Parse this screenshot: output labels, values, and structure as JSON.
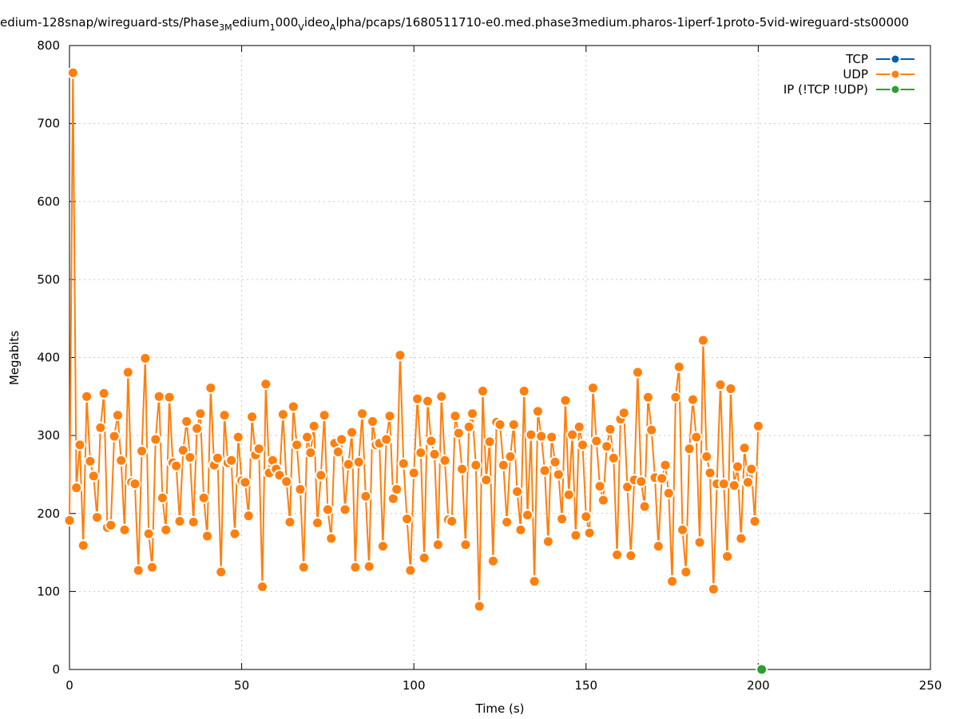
{
  "chart_data": {
    "type": "line",
    "title_segments": [
      "edium-128snap/wireguard-sts/Phase",
      "3M",
      "edium",
      "1",
      "000",
      "V",
      "ideo",
      "A",
      "lpha/pcaps/1680511710-e0.med.phase3medium.pharos-1iperf-1proto-5vid-wireguard-sts00000"
    ],
    "xlabel": "Time (s)",
    "ylabel": "Megabits",
    "xlim": [
      0,
      250
    ],
    "xticks": [
      0,
      50,
      100,
      150,
      200,
      250
    ],
    "ylim": [
      0,
      800
    ],
    "yticks": [
      0,
      100,
      200,
      300,
      400,
      500,
      600,
      700,
      800
    ],
    "grid": true,
    "legend": "top-right",
    "series": [
      {
        "name": "TCP",
        "color": "#0060ad",
        "x": [],
        "values": []
      },
      {
        "name": "UDP",
        "color": "#ff7f0e",
        "x": [
          0,
          1,
          2,
          3,
          4,
          5,
          6,
          7,
          8,
          9,
          10,
          11,
          12,
          13,
          14,
          15,
          16,
          17,
          18,
          19,
          20,
          21,
          22,
          23,
          24,
          25,
          26,
          27,
          28,
          29,
          30,
          31,
          32,
          33,
          34,
          35,
          36,
          37,
          38,
          39,
          40,
          41,
          42,
          43,
          44,
          45,
          46,
          47,
          48,
          49,
          50,
          51,
          52,
          53,
          54,
          55,
          56,
          57,
          58,
          59,
          60,
          61,
          62,
          63,
          64,
          65,
          66,
          67,
          68,
          69,
          70,
          71,
          72,
          73,
          74,
          75,
          76,
          77,
          78,
          79,
          80,
          81,
          82,
          83,
          84,
          85,
          86,
          87,
          88,
          89,
          90,
          91,
          92,
          93,
          94,
          95,
          96,
          97,
          98,
          99,
          100,
          101,
          102,
          103,
          104,
          105,
          106,
          107,
          108,
          109,
          110,
          111,
          112,
          113,
          114,
          115,
          116,
          117,
          118,
          119,
          120,
          121,
          122,
          123,
          124,
          125,
          126,
          127,
          128,
          129,
          130,
          131,
          132,
          133,
          134,
          135,
          136,
          137,
          138,
          139,
          140,
          141,
          142,
          143,
          144,
          145,
          146,
          147,
          148,
          149,
          150,
          151,
          152,
          153,
          154,
          155,
          156,
          157,
          158,
          159,
          160,
          161,
          162,
          163,
          164,
          165,
          166,
          167,
          168,
          169,
          170,
          171,
          172,
          173,
          174,
          175,
          176,
          177,
          178,
          179,
          180,
          181,
          182,
          183,
          184,
          185,
          186,
          187,
          188,
          189,
          190,
          191,
          192,
          193,
          194,
          195,
          196,
          197,
          198,
          199,
          200
        ],
        "values": [
          191,
          765,
          233,
          288,
          159,
          350,
          267,
          248,
          195,
          310,
          354,
          182,
          185,
          299,
          326,
          268,
          179,
          381,
          240,
          238,
          127,
          280,
          399,
          174,
          131,
          295,
          350,
          220,
          179,
          349,
          265,
          261,
          190,
          281,
          318,
          272,
          189,
          309,
          328,
          220,
          171,
          361,
          262,
          271,
          125,
          326,
          265,
          268,
          174,
          298,
          242,
          240,
          197,
          324,
          275,
          283,
          106,
          366,
          252,
          268,
          257,
          249,
          327,
          241,
          189,
          337,
          288,
          231,
          131,
          298,
          278,
          312,
          188,
          249,
          326,
          205,
          168,
          290,
          279,
          295,
          205,
          263,
          304,
          131,
          266,
          328,
          222,
          132,
          318,
          288,
          290,
          158,
          295,
          325,
          219,
          231,
          403,
          264,
          193,
          127,
          252,
          347,
          278,
          143,
          344,
          293,
          276,
          160,
          350,
          268,
          192,
          190,
          325,
          303,
          257,
          160,
          311,
          328,
          262,
          81,
          357,
          243,
          292,
          139,
          317,
          314,
          262,
          189,
          273,
          314,
          228,
          179,
          357,
          198,
          301,
          113,
          331,
          299,
          255,
          164,
          298,
          266,
          250,
          193,
          345,
          224,
          301,
          172,
          311,
          288,
          196,
          175,
          361,
          293,
          235,
          217,
          286,
          308,
          271,
          147,
          321,
          329,
          234,
          146,
          243,
          381,
          241,
          209,
          349,
          307,
          246,
          158,
          245,
          262,
          226,
          113,
          349,
          388,
          179,
          125,
          283,
          346,
          298,
          163,
          422,
          273,
          252,
          103,
          238,
          365,
          238,
          145,
          360,
          236,
          260,
          168,
          284,
          240,
          257,
          190,
          312
        ]
      },
      {
        "name": "IP (!TCP  !UDP)",
        "color": "#2ca02c",
        "x": [
          201
        ],
        "values": [
          0
        ]
      }
    ]
  }
}
